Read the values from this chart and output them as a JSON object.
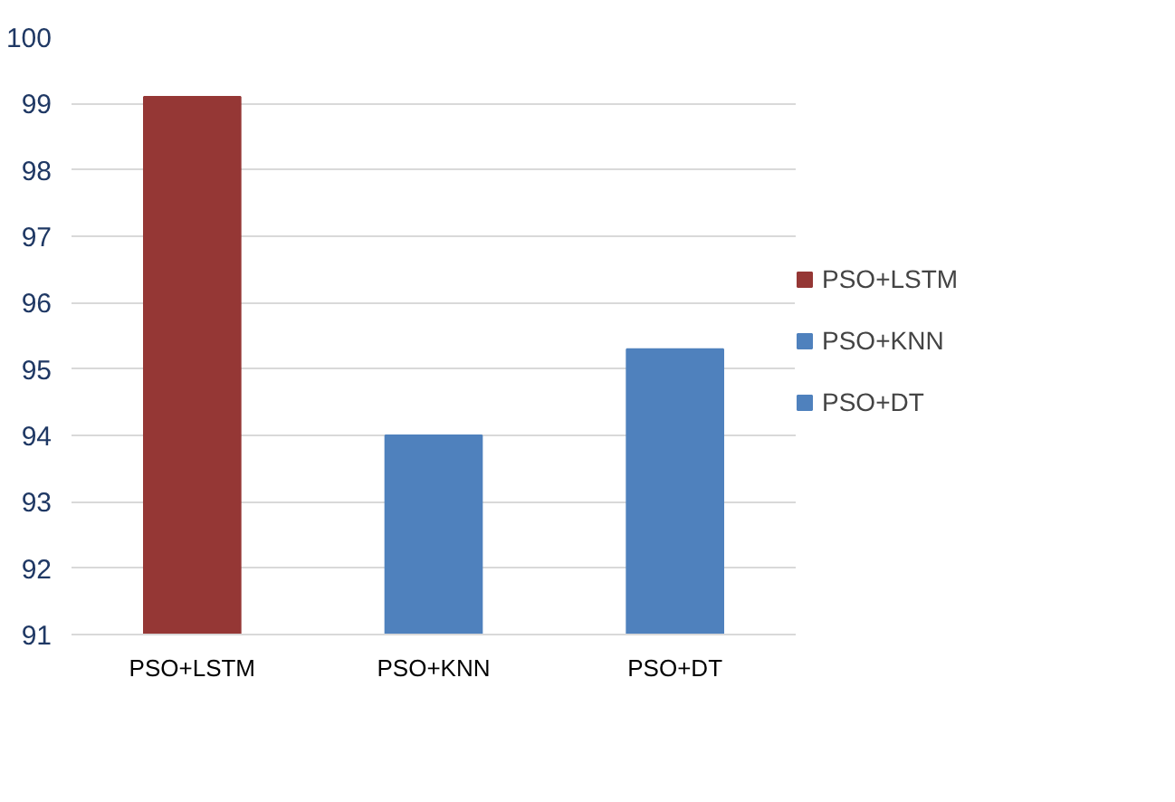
{
  "chart_data": {
    "type": "bar",
    "categories": [
      "PSO+LSTM",
      "PSO+KNN",
      "PSO+DT"
    ],
    "series": [
      {
        "name": "PSO+LSTM",
        "color": "#953735",
        "values": [
          99.1,
          null,
          null
        ]
      },
      {
        "name": "PSO+KNN",
        "color": "#4f81bd",
        "values": [
          null,
          94.0,
          null
        ]
      },
      {
        "name": "PSO+DT",
        "color": "#4f81bd",
        "values": [
          null,
          null,
          95.3
        ]
      }
    ],
    "ylim": [
      91,
      100
    ],
    "yticks": [
      91,
      92,
      93,
      94,
      95,
      96,
      97,
      98,
      99,
      100
    ],
    "grid": "y",
    "legend": "right"
  }
}
